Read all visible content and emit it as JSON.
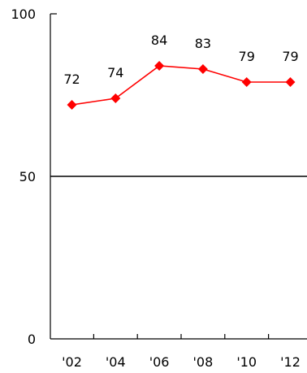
{
  "chart_data": {
    "type": "line",
    "title": "",
    "xlabel": "",
    "ylabel": "",
    "categories": [
      "'02",
      "'04",
      "'06",
      "'08",
      "'10",
      "'12"
    ],
    "series": [
      {
        "values": [
          72,
          74,
          84,
          83,
          79,
          79
        ]
      }
    ],
    "ylim": [
      0,
      100
    ],
    "yticks": [
      "0",
      "50",
      "100"
    ],
    "gridlines_at": [
      50
    ],
    "grid": false,
    "legend": "none",
    "line_color": "#ff0000",
    "marker": "diamond"
  }
}
